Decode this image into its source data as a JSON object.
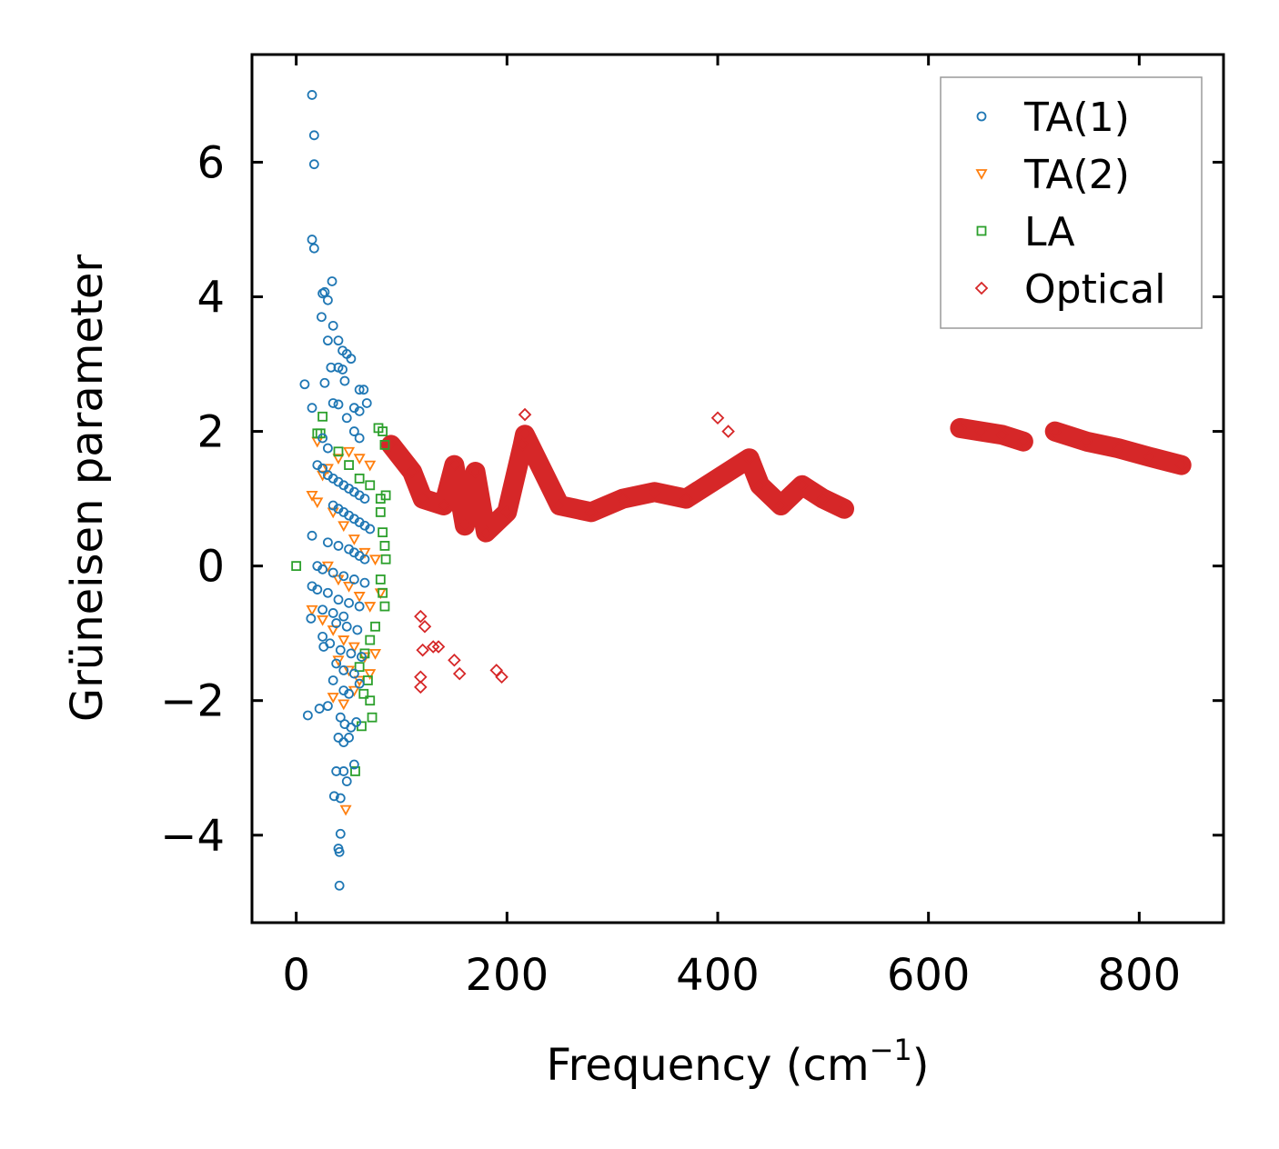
{
  "chart_data": {
    "type": "scatter",
    "title": "",
    "xlabel": "Frequency (cm",
    "xlabel_sup": "−1",
    "xlabel_end": ")",
    "ylabel": "Grüneisen parameter",
    "xlim": [
      -42,
      880
    ],
    "ylim": [
      -5.3,
      7.6
    ],
    "xticks": [
      0,
      200,
      400,
      600,
      800
    ],
    "xtick_labels": [
      "0",
      "200",
      "400",
      "600",
      "800"
    ],
    "yticks": [
      -4,
      -2,
      0,
      2,
      4,
      6
    ],
    "ytick_labels": [
      "−4",
      "−2",
      "0",
      "2",
      "4",
      "6"
    ],
    "legend_position": "top-right",
    "series": [
      {
        "name": "TA(1)",
        "marker": "circle",
        "color": "#1f77b4",
        "points": [
          [
            15,
            7.0
          ],
          [
            17,
            6.4
          ],
          [
            17,
            5.97
          ],
          [
            15,
            4.85
          ],
          [
            17,
            4.72
          ],
          [
            25,
            4.05
          ],
          [
            27,
            4.07
          ],
          [
            34,
            4.23
          ],
          [
            30,
            3.95
          ],
          [
            24,
            3.7
          ],
          [
            35,
            3.57
          ],
          [
            30,
            3.35
          ],
          [
            40,
            3.35
          ],
          [
            44,
            3.2
          ],
          [
            48,
            3.15
          ],
          [
            52,
            3.08
          ],
          [
            40,
            2.95
          ],
          [
            44,
            2.92
          ],
          [
            8,
            2.7
          ],
          [
            27,
            2.72
          ],
          [
            46,
            2.75
          ],
          [
            33,
            2.95
          ],
          [
            60,
            2.62
          ],
          [
            64,
            2.62
          ],
          [
            35,
            2.42
          ],
          [
            40,
            2.4
          ],
          [
            67,
            2.42
          ],
          [
            15,
            2.35
          ],
          [
            55,
            2.35
          ],
          [
            60,
            2.3
          ],
          [
            48,
            2.2
          ],
          [
            55,
            2.0
          ],
          [
            60,
            1.9
          ],
          [
            25,
            1.9
          ],
          [
            30,
            1.75
          ],
          [
            20,
            1.5
          ],
          [
            25,
            1.45
          ],
          [
            30,
            1.35
          ],
          [
            35,
            1.3
          ],
          [
            40,
            1.25
          ],
          [
            45,
            1.2
          ],
          [
            50,
            1.15
          ],
          [
            55,
            1.1
          ],
          [
            60,
            1.05
          ],
          [
            65,
            1.0
          ],
          [
            35,
            0.9
          ],
          [
            40,
            0.85
          ],
          [
            45,
            0.8
          ],
          [
            50,
            0.75
          ],
          [
            55,
            0.7
          ],
          [
            60,
            0.65
          ],
          [
            65,
            0.6
          ],
          [
            70,
            0.55
          ],
          [
            15,
            0.45
          ],
          [
            30,
            0.35
          ],
          [
            40,
            0.3
          ],
          [
            50,
            0.25
          ],
          [
            55,
            0.2
          ],
          [
            60,
            0.15
          ],
          [
            65,
            0.1
          ],
          [
            20,
            0.0
          ],
          [
            25,
            -0.05
          ],
          [
            35,
            -0.1
          ],
          [
            45,
            -0.15
          ],
          [
            55,
            -0.2
          ],
          [
            65,
            -0.25
          ],
          [
            15,
            -0.3
          ],
          [
            20,
            -0.35
          ],
          [
            30,
            -0.4
          ],
          [
            40,
            -0.5
          ],
          [
            50,
            -0.55
          ],
          [
            60,
            -0.6
          ],
          [
            25,
            -0.65
          ],
          [
            35,
            -0.7
          ],
          [
            45,
            -0.75
          ],
          [
            14,
            -0.78
          ],
          [
            38,
            -0.85
          ],
          [
            48,
            -0.9
          ],
          [
            58,
            -0.95
          ],
          [
            25,
            -1.05
          ],
          [
            32,
            -1.15
          ],
          [
            42,
            -1.25
          ],
          [
            52,
            -1.3
          ],
          [
            62,
            -1.35
          ],
          [
            26,
            -1.2
          ],
          [
            38,
            -1.45
          ],
          [
            45,
            -1.55
          ],
          [
            55,
            -1.6
          ],
          [
            35,
            -1.7
          ],
          [
            45,
            -1.85
          ],
          [
            50,
            -1.9
          ],
          [
            60,
            -1.75
          ],
          [
            22,
            -2.12
          ],
          [
            11,
            -2.22
          ],
          [
            30,
            -2.08
          ],
          [
            42,
            -2.25
          ],
          [
            46,
            -2.35
          ],
          [
            52,
            -2.4
          ],
          [
            57,
            -2.32
          ],
          [
            40,
            -2.55
          ],
          [
            45,
            -2.62
          ],
          [
            50,
            -2.55
          ],
          [
            55,
            -2.95
          ],
          [
            38,
            -3.05
          ],
          [
            45,
            -3.05
          ],
          [
            48,
            -3.2
          ],
          [
            36,
            -3.42
          ],
          [
            42,
            -3.45
          ],
          [
            42,
            -3.98
          ],
          [
            40,
            -4.2
          ],
          [
            41,
            -4.25
          ],
          [
            41,
            -4.75
          ]
        ]
      },
      {
        "name": "TA(2)",
        "marker": "triangle-down",
        "color": "#ff7f0e",
        "points": [
          [
            15,
            1.05
          ],
          [
            20,
            0.95
          ],
          [
            25,
            1.35
          ],
          [
            30,
            1.45
          ],
          [
            40,
            1.6
          ],
          [
            50,
            1.7
          ],
          [
            60,
            1.6
          ],
          [
            70,
            1.5
          ],
          [
            20,
            1.85
          ],
          [
            35,
            0.8
          ],
          [
            45,
            0.6
          ],
          [
            55,
            0.4
          ],
          [
            65,
            0.2
          ],
          [
            75,
            0.1
          ],
          [
            30,
            0.0
          ],
          [
            40,
            -0.2
          ],
          [
            50,
            -0.3
          ],
          [
            60,
            -0.45
          ],
          [
            70,
            -0.6
          ],
          [
            80,
            -0.4
          ],
          [
            15,
            -0.65
          ],
          [
            25,
            -0.8
          ],
          [
            35,
            -0.95
          ],
          [
            45,
            -1.1
          ],
          [
            55,
            -1.2
          ],
          [
            65,
            -1.35
          ],
          [
            75,
            -1.3
          ],
          [
            40,
            -1.4
          ],
          [
            50,
            -1.55
          ],
          [
            60,
            -1.7
          ],
          [
            70,
            -1.6
          ],
          [
            35,
            -1.95
          ],
          [
            45,
            -2.05
          ],
          [
            55,
            -1.85
          ],
          [
            47,
            -3.62
          ]
        ]
      },
      {
        "name": "LA",
        "marker": "square",
        "color": "#2ca02c",
        "points": [
          [
            0,
            0.0
          ],
          [
            23,
            1.97
          ],
          [
            20,
            1.97
          ],
          [
            25,
            2.22
          ],
          [
            40,
            1.7
          ],
          [
            50,
            1.5
          ],
          [
            60,
            1.3
          ],
          [
            70,
            1.2
          ],
          [
            80,
            1.0
          ],
          [
            85,
            1.05
          ],
          [
            78,
            2.05
          ],
          [
            82,
            2.0
          ],
          [
            84,
            1.8
          ],
          [
            80,
            0.8
          ],
          [
            82,
            0.5
          ],
          [
            84,
            0.3
          ],
          [
            85,
            0.1
          ],
          [
            80,
            -0.2
          ],
          [
            82,
            -0.4
          ],
          [
            84,
            -0.6
          ],
          [
            75,
            -0.9
          ],
          [
            70,
            -1.1
          ],
          [
            65,
            -1.3
          ],
          [
            60,
            -1.5
          ],
          [
            68,
            -1.7
          ],
          [
            64,
            -1.9
          ],
          [
            70,
            -2.0
          ],
          [
            72,
            -2.25
          ],
          [
            62,
            -2.38
          ],
          [
            56,
            -3.05
          ]
        ]
      },
      {
        "name": "Optical",
        "marker": "diamond",
        "color": "#d62728",
        "points": [
          [
            90,
            1.8
          ],
          [
            110,
            1.4
          ],
          [
            120,
            1.0
          ],
          [
            140,
            0.9
          ],
          [
            160,
            0.6
          ],
          [
            180,
            0.5
          ],
          [
            200,
            0.8
          ],
          [
            215,
            1.8
          ],
          [
            217,
            1.95
          ],
          [
            217,
            2.25
          ],
          [
            250,
            0.9
          ],
          [
            280,
            0.8
          ],
          [
            310,
            1.0
          ],
          [
            340,
            1.1
          ],
          [
            370,
            1.0
          ],
          [
            118,
            -0.75
          ],
          [
            122,
            -0.9
          ],
          [
            120,
            -1.25
          ],
          [
            118,
            -1.65
          ],
          [
            118,
            -1.8
          ],
          [
            130,
            -1.2
          ],
          [
            135,
            -1.2
          ],
          [
            150,
            -1.4
          ],
          [
            155,
            -1.6
          ],
          [
            190,
            -1.55
          ],
          [
            195,
            -1.65
          ],
          [
            150,
            1.5
          ],
          [
            170,
            1.4
          ],
          [
            400,
            2.2
          ],
          [
            410,
            2.0
          ],
          [
            430,
            1.6
          ],
          [
            440,
            1.2
          ],
          [
            460,
            0.9
          ],
          [
            480,
            1.2
          ],
          [
            500,
            1.0
          ],
          [
            520,
            0.85
          ],
          [
            630,
            2.05
          ],
          [
            650,
            2.0
          ],
          [
            670,
            1.95
          ],
          [
            690,
            1.85
          ],
          [
            720,
            2.0
          ],
          [
            750,
            1.85
          ],
          [
            780,
            1.75
          ],
          [
            810,
            1.62
          ],
          [
            840,
            1.5
          ]
        ]
      }
    ]
  }
}
